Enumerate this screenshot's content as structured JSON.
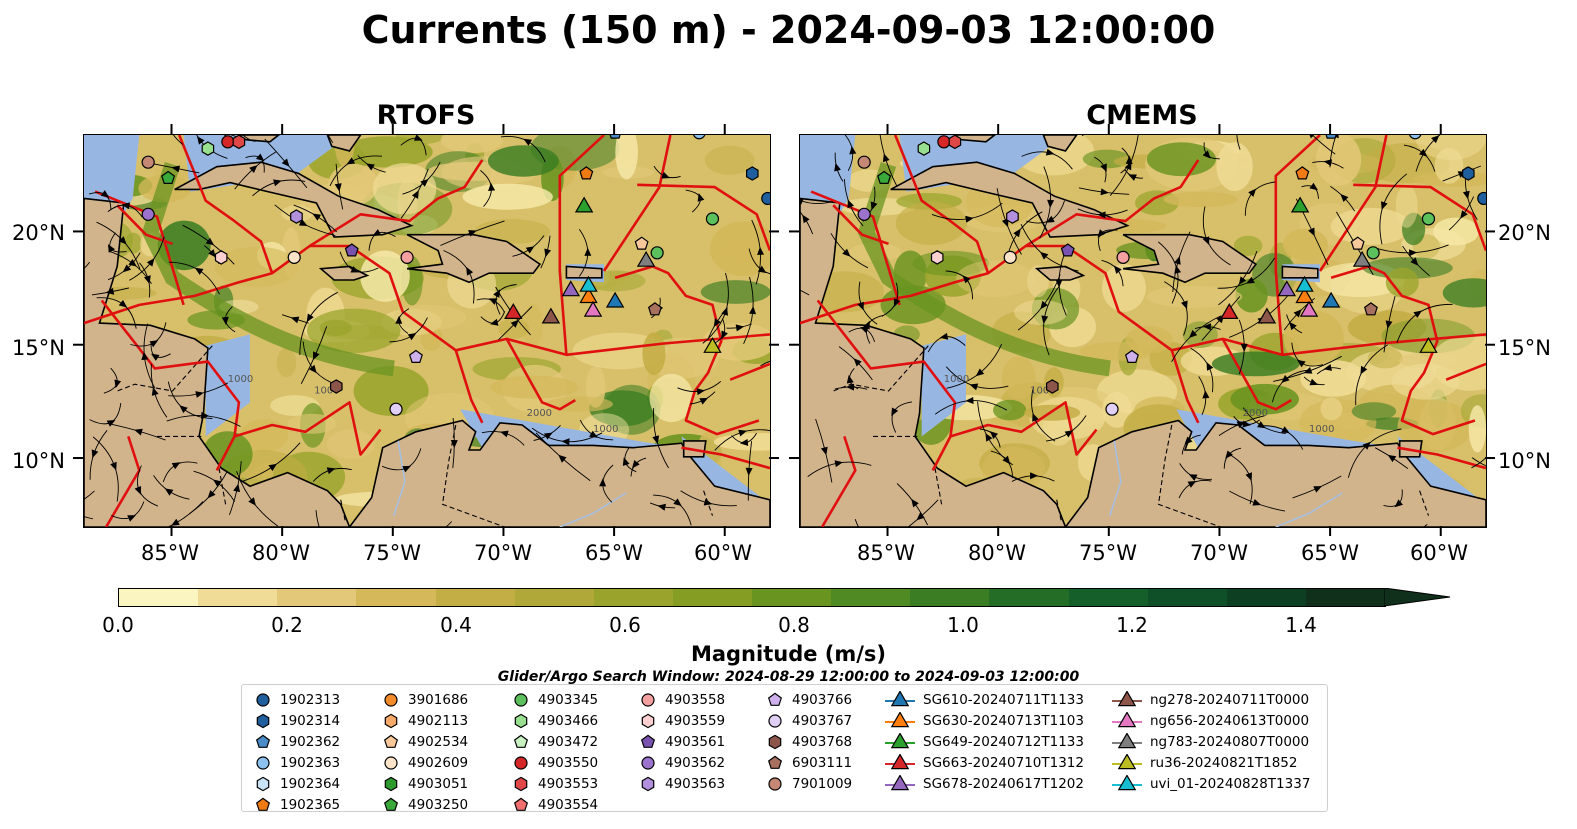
{
  "title": "Currents (150 m) - 2024-09-03 12:00:00",
  "panels": [
    {
      "title": "RTOFS"
    },
    {
      "title": "CMEMS"
    }
  ],
  "axes": {
    "y_ticks": [
      "20°N",
      "15°N",
      "10°N"
    ],
    "x_ticks": [
      "85°W",
      "80°W",
      "75°W",
      "70°W",
      "65°W",
      "60°W"
    ]
  },
  "contour_labels": [
    "1000",
    "1000",
    "2000",
    "1000"
  ],
  "colorbar": {
    "label": "Magnitude (m/s)",
    "ticks": [
      "0.0",
      "0.2",
      "0.4",
      "0.6",
      "0.8",
      "1.0",
      "1.2",
      "1.4"
    ],
    "range": [
      0.0,
      1.6
    ],
    "colors": [
      "#fbf5c2",
      "#f0dc96",
      "#e2c878",
      "#d4b85a",
      "#c3ad45",
      "#b0a838",
      "#9aa42c",
      "#849d22",
      "#6a9420",
      "#508a22",
      "#3b7d22",
      "#236d26",
      "#145f2a",
      "#0f5028",
      "#0d3f22",
      "#10301c"
    ],
    "extend": "max"
  },
  "search_window": "Glider/Argo Search Window: 2024-08-29 12:00:00 to 2024-09-03 12:00:00",
  "land_color": "#d2b48c",
  "shelf_color": "#98b6e2",
  "legend": {
    "columns": [
      [
        {
          "label": "1902313",
          "marker": "circle",
          "color": "#1f5f9e"
        },
        {
          "label": "1902314",
          "marker": "hexagon",
          "color": "#1f5f9e"
        },
        {
          "label": "1902362",
          "marker": "pentagon",
          "color": "#4a8cc8"
        },
        {
          "label": "1902363",
          "marker": "circle",
          "color": "#8ec2ee"
        },
        {
          "label": "1902364",
          "marker": "hexagon",
          "color": "#c8e2f6"
        },
        {
          "label": "1902365",
          "marker": "pentagon",
          "color": "#f07a14"
        }
      ],
      [
        {
          "label": "3901686",
          "marker": "circle",
          "color": "#f28c28"
        },
        {
          "label": "4902113",
          "marker": "hexagon",
          "color": "#f6aa6a"
        },
        {
          "label": "4902534",
          "marker": "pentagon",
          "color": "#f8c89a"
        },
        {
          "label": "4902609",
          "marker": "circle",
          "color": "#fde3c8"
        },
        {
          "label": "4903051",
          "marker": "hexagon",
          "color": "#2c9a2c"
        },
        {
          "label": "4903250",
          "marker": "pentagon",
          "color": "#3aa83a"
        }
      ],
      [
        {
          "label": "4903345",
          "marker": "circle",
          "color": "#5cc05c"
        },
        {
          "label": "4903466",
          "marker": "hexagon",
          "color": "#98e090"
        },
        {
          "label": "4903472",
          "marker": "pentagon",
          "color": "#c8f0c0"
        },
        {
          "label": "4903550",
          "marker": "circle",
          "color": "#d62728"
        },
        {
          "label": "4903553",
          "marker": "hexagon",
          "color": "#e04848"
        },
        {
          "label": "4903554",
          "marker": "pentagon",
          "color": "#f07070"
        }
      ],
      [
        {
          "label": "4903558",
          "marker": "circle",
          "color": "#f4a0a0"
        },
        {
          "label": "4903559",
          "marker": "hexagon",
          "color": "#fcd0d0"
        },
        {
          "label": "4903561",
          "marker": "pentagon",
          "color": "#7a52b0"
        },
        {
          "label": "4903562",
          "marker": "circle",
          "color": "#9b72cc"
        },
        {
          "label": "4903563",
          "marker": "hexagon",
          "color": "#b290dc"
        }
      ],
      [
        {
          "label": "4903766",
          "marker": "pentagon",
          "color": "#cdb0ec"
        },
        {
          "label": "4903767",
          "marker": "circle",
          "color": "#e2cff6"
        },
        {
          "label": "4903768",
          "marker": "hexagon",
          "color": "#8c564b"
        },
        {
          "label": "6903111",
          "marker": "pentagon",
          "color": "#a8705e"
        },
        {
          "label": "7901009",
          "marker": "circle",
          "color": "#c48874"
        }
      ],
      [
        {
          "label": "SG610-20240711T1133",
          "marker": "triangle",
          "color": "#1f77b4"
        },
        {
          "label": "SG630-20240713T1103",
          "marker": "triangle",
          "color": "#ff7f0e"
        },
        {
          "label": "SG649-20240712T1133",
          "marker": "triangle",
          "color": "#2ca02c"
        },
        {
          "label": "SG663-20240710T1312",
          "marker": "triangle",
          "color": "#d62728"
        },
        {
          "label": "SG678-20240617T1202",
          "marker": "triangle",
          "color": "#9467bd"
        }
      ],
      [
        {
          "label": "ng278-20240711T0000",
          "marker": "triangle",
          "color": "#8c564b"
        },
        {
          "label": "ng656-20240613T0000",
          "marker": "triangle",
          "color": "#e377c2"
        },
        {
          "label": "ng783-20240807T0000",
          "marker": "triangle",
          "color": "#7f7f7f"
        },
        {
          "label": "ru36-20240821T1852",
          "marker": "triangle",
          "color": "#bcbd22"
        },
        {
          "label": "uvi_01-20240828T1337",
          "marker": "triangle",
          "color": "#17becf"
        }
      ]
    ]
  },
  "markers": [
    {
      "name": "1902313",
      "marker": "circle",
      "color": "#1f5f9e",
      "lon": -58.1,
      "lat": 21.5
    },
    {
      "name": "1902314",
      "marker": "hexagon",
      "color": "#1f5f9e",
      "lon": -58.8,
      "lat": 22.6
    },
    {
      "name": "1902362",
      "marker": "pentagon",
      "color": "#4a8cc8",
      "lon": -65.0,
      "lat": 24.4
    },
    {
      "name": "1902363",
      "marker": "circle",
      "color": "#8ec2ee",
      "lon": -61.2,
      "lat": 24.4
    },
    {
      "name": "1902365",
      "marker": "pentagon",
      "color": "#f07a14",
      "lon": -66.3,
      "lat": 22.6
    },
    {
      "name": "4902534",
      "marker": "pentagon",
      "color": "#f8c89a",
      "lon": -63.8,
      "lat": 19.5
    },
    {
      "name": "4902609",
      "marker": "circle",
      "color": "#fde3c8",
      "lon": -79.5,
      "lat": 18.9
    },
    {
      "name": "4903250",
      "marker": "pentagon",
      "color": "#3aa83a",
      "lon": -85.2,
      "lat": 22.4
    },
    {
      "name": "4903345",
      "marker": "circle",
      "color": "#5cc05c",
      "lon": -60.6,
      "lat": 20.6
    },
    {
      "name": "4903466",
      "marker": "hexagon",
      "color": "#98e090",
      "lon": -83.4,
      "lat": 23.7
    },
    {
      "name": "4903345b",
      "marker": "circle",
      "color": "#5cc05c",
      "lon": -63.1,
      "lat": 19.1
    },
    {
      "name": "4903550",
      "marker": "circle",
      "color": "#d62728",
      "lon": -82.5,
      "lat": 24.0
    },
    {
      "name": "4903553",
      "marker": "hexagon",
      "color": "#e04848",
      "lon": -82.0,
      "lat": 24.0
    },
    {
      "name": "4903558",
      "marker": "circle",
      "color": "#f4a0a0",
      "lon": -74.4,
      "lat": 18.9
    },
    {
      "name": "4903559",
      "marker": "hexagon",
      "color": "#fcd0d0",
      "lon": -82.8,
      "lat": 18.9
    },
    {
      "name": "4903561",
      "marker": "pentagon",
      "color": "#7a52b0",
      "lon": -76.9,
      "lat": 19.2
    },
    {
      "name": "4903562",
      "marker": "circle",
      "color": "#9b72cc",
      "lon": -86.1,
      "lat": 20.8
    },
    {
      "name": "4903563",
      "marker": "hexagon",
      "color": "#b290dc",
      "lon": -79.4,
      "lat": 20.7
    },
    {
      "name": "4903766",
      "marker": "pentagon",
      "color": "#cdb0ec",
      "lon": -74.0,
      "lat": 14.5
    },
    {
      "name": "4903767",
      "marker": "circle",
      "color": "#e2cff6",
      "lon": -74.9,
      "lat": 12.2
    },
    {
      "name": "4903768",
      "marker": "hexagon",
      "color": "#8c564b",
      "lon": -77.6,
      "lat": 13.2
    },
    {
      "name": "6903111",
      "marker": "pentagon",
      "color": "#a8705e",
      "lon": -63.2,
      "lat": 16.6
    },
    {
      "name": "7901009",
      "marker": "circle",
      "color": "#c48874",
      "lon": -86.1,
      "lat": 23.1
    },
    {
      "name": "SG610",
      "marker": "triangle",
      "color": "#1f77b4",
      "lon": -65.0,
      "lat": 17.0
    },
    {
      "name": "SG630",
      "marker": "triangle",
      "color": "#ff7f0e",
      "lon": -66.2,
      "lat": 17.2
    },
    {
      "name": "SG649",
      "marker": "triangle",
      "color": "#2ca02c",
      "lon": -66.4,
      "lat": 21.2
    },
    {
      "name": "SG663",
      "marker": "triangle",
      "color": "#d62728",
      "lon": -69.6,
      "lat": 16.5
    },
    {
      "name": "SG678",
      "marker": "triangle",
      "color": "#9467bd",
      "lon": -67.0,
      "lat": 17.5
    },
    {
      "name": "ng278",
      "marker": "triangle",
      "color": "#8c564b",
      "lon": -67.9,
      "lat": 16.3
    },
    {
      "name": "ng656",
      "marker": "triangle",
      "color": "#e377c2",
      "lon": -66.0,
      "lat": 16.6
    },
    {
      "name": "ng783",
      "marker": "triangle",
      "color": "#7f7f7f",
      "lon": -63.6,
      "lat": 18.8
    },
    {
      "name": "ru36",
      "marker": "triangle",
      "color": "#bcbd22",
      "lon": -60.6,
      "lat": 15.0
    },
    {
      "name": "uvi_01",
      "marker": "triangle",
      "color": "#17becf",
      "lon": -66.2,
      "lat": 17.7
    }
  ]
}
